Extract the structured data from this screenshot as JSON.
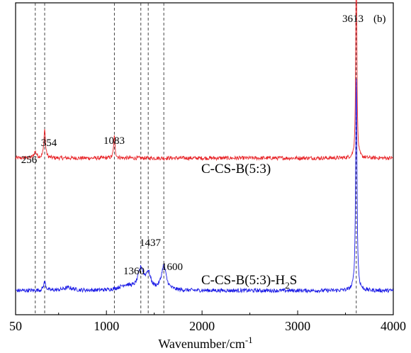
{
  "chart_data": {
    "type": "line",
    "panel_label": "(b)",
    "xlabel": "Wavenumber/cm",
    "xlabel_superscript": "-1",
    "ylabel": "",
    "xlim": [
      50,
      4000
    ],
    "x_ticks": [
      50,
      1000,
      2000,
      3000,
      4000
    ],
    "grid": false,
    "legend": "none",
    "reference_lines_x": [
      256,
      354,
      1083,
      1360,
      1437,
      1600,
      3613
    ],
    "series": [
      {
        "name": "C-CS-B(5:3)",
        "color": "#e8262a",
        "baseline": 0.55,
        "peaks": [
          {
            "x": 256,
            "h": 0.025,
            "w": 18
          },
          {
            "x": 354,
            "h": 0.12,
            "w": 10
          },
          {
            "x": 1083,
            "h": 0.09,
            "w": 9
          },
          {
            "x": 3613,
            "h": 1.0,
            "w": 6
          }
        ],
        "noise": 0.008
      },
      {
        "name": "C-CS-B(5:3)-H",
        "name_subscript": "2",
        "name_suffix": "S",
        "color": "#1a1ae6",
        "baseline": 0.0,
        "peaks": [
          {
            "x": 354,
            "h": 0.035,
            "w": 14
          },
          {
            "x": 600,
            "h": 0.012,
            "w": 60
          },
          {
            "x": 1360,
            "h": 0.085,
            "w": 35
          },
          {
            "x": 1437,
            "h": 0.065,
            "w": 30
          },
          {
            "x": 1600,
            "h": 0.1,
            "w": 30
          },
          {
            "x": 1200,
            "h": 0.02,
            "w": 80
          },
          {
            "x": 3613,
            "h": 0.9,
            "w": 8
          }
        ],
        "noise": 0.008
      }
    ],
    "peak_labels": [
      {
        "text": "256",
        "x": 256,
        "series": 0
      },
      {
        "text": "354",
        "x": 354,
        "series": 0
      },
      {
        "text": "1083",
        "x": 1083,
        "series": 0
      },
      {
        "text": "3613",
        "x": 3613,
        "series": 0
      },
      {
        "text": "1360",
        "x": 1360,
        "series": 1
      },
      {
        "text": "1437",
        "x": 1437,
        "series": 1
      },
      {
        "text": "1600",
        "x": 1600,
        "series": 1
      }
    ]
  }
}
